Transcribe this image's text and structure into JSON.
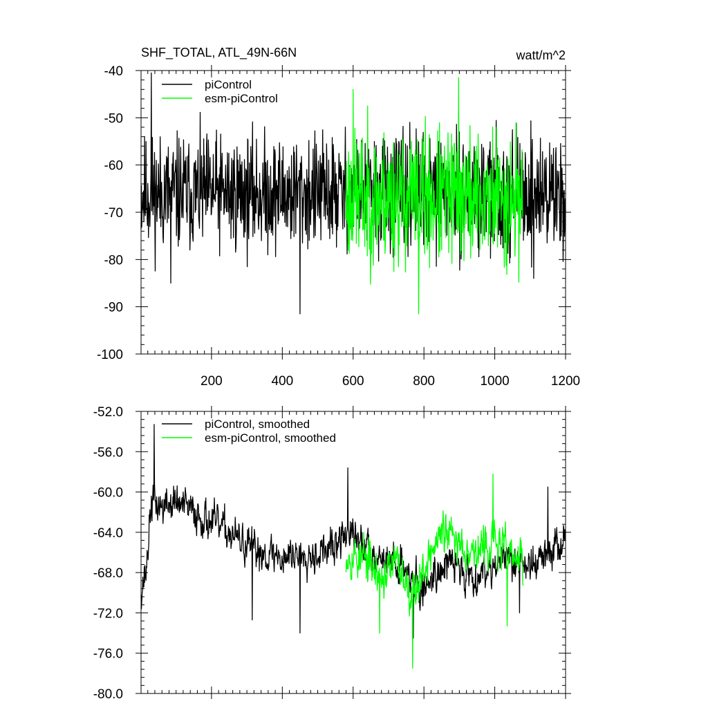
{
  "chart_data": [
    {
      "type": "line",
      "title": "SHF_TOTAL, ATL_49N-66N",
      "units": "watt/m^2",
      "xlim": [
        1,
        1200
      ],
      "ylim": [
        -100,
        -40
      ],
      "x_ticks": [
        200,
        400,
        600,
        800,
        1000,
        1200
      ],
      "x_tick_labels": [
        "200",
        "400",
        "600",
        "800",
        "1000",
        "1200"
      ],
      "y_ticks": [
        -100,
        -90,
        -80,
        -70,
        -60,
        -50,
        -40
      ],
      "y_tick_labels": [
        "-100",
        "-90",
        "-80",
        "-70",
        "-60",
        "-50",
        "-40"
      ],
      "legend_position": "top-left",
      "series": [
        {
          "name": "piControl",
          "color": "#000000",
          "x_range": [
            1,
            1200
          ],
          "mean": -66,
          "spread": 6,
          "peaks": [
            [
              30,
              -40.5
            ],
            [
              450,
              -91.5
            ],
            [
              85,
              -85
            ],
            [
              1110,
              -84
            ]
          ],
          "seed": 11
        },
        {
          "name": "esm-piControl",
          "color": "#00ff00",
          "x_range": [
            580,
            1080
          ],
          "mean": -67,
          "spread": 7,
          "peaks": [
            [
              898,
              -41.5
            ],
            [
              785,
              -91.5
            ],
            [
              600,
              -44
            ]
          ],
          "seed": 23
        }
      ]
    },
    {
      "type": "line",
      "title": "",
      "xlim": [
        1,
        1200
      ],
      "ylim": [
        -80,
        -52
      ],
      "y_ticks": [
        -80,
        -76,
        -72,
        -68,
        -64,
        -60,
        -56,
        -52
      ],
      "y_tick_labels": [
        "-80.0",
        "-76.0",
        "-72.0",
        "-68.0",
        "-64.0",
        "-60.0",
        "-56.0",
        "-52.0"
      ],
      "legend_position": "top-left",
      "series": [
        {
          "name": "piControl, smoothed",
          "color": "#000000",
          "x_range": [
            1,
            1200
          ],
          "anchors": [
            [
              1,
              -69.5
            ],
            [
              15,
              -68
            ],
            [
              30,
              -61
            ],
            [
              60,
              -61.5
            ],
            [
              100,
              -61
            ],
            [
              150,
              -62
            ],
            [
              200,
              -63
            ],
            [
              250,
              -64
            ],
            [
              300,
              -65.5
            ],
            [
              350,
              -66
            ],
            [
              400,
              -66.5
            ],
            [
              450,
              -66
            ],
            [
              500,
              -66
            ],
            [
              550,
              -65.5
            ],
            [
              580,
              -64
            ],
            [
              620,
              -65
            ],
            [
              680,
              -66.5
            ],
            [
              750,
              -67.5
            ],
            [
              790,
              -70
            ],
            [
              830,
              -68
            ],
            [
              880,
              -67
            ],
            [
              940,
              -68.5
            ],
            [
              1000,
              -67
            ],
            [
              1060,
              -66.5
            ],
            [
              1100,
              -67.5
            ],
            [
              1150,
              -66
            ],
            [
              1200,
              -65
            ]
          ],
          "spread": 1.5,
          "peaks": [
            [
              38,
              -53.3
            ],
            [
              450,
              -74
            ],
            [
              315,
              -72.7
            ],
            [
              770,
              -74.5
            ],
            [
              1150,
              -59.5
            ],
            [
              585,
              -57.6
            ],
            [
              1070,
              -72
            ]
          ],
          "seed": 37
        },
        {
          "name": "esm-piControl, smoothed",
          "color": "#00ff00",
          "x_range": [
            580,
            1080
          ],
          "anchors": [
            [
              580,
              -66
            ],
            [
              640,
              -67
            ],
            [
              680,
              -68.5
            ],
            [
              720,
              -67
            ],
            [
              770,
              -70
            ],
            [
              800,
              -67.5
            ],
            [
              850,
              -64
            ],
            [
              900,
              -65
            ],
            [
              950,
              -66
            ],
            [
              1000,
              -65
            ],
            [
              1050,
              -66.5
            ],
            [
              1080,
              -67
            ]
          ],
          "spread": 1.7,
          "peaks": [
            [
              768,
              -77.5
            ],
            [
              995,
              -58.2
            ],
            [
              675,
              -74
            ],
            [
              1035,
              -73.3
            ],
            [
              630,
              -64
            ]
          ],
          "seed": 53
        }
      ]
    }
  ]
}
